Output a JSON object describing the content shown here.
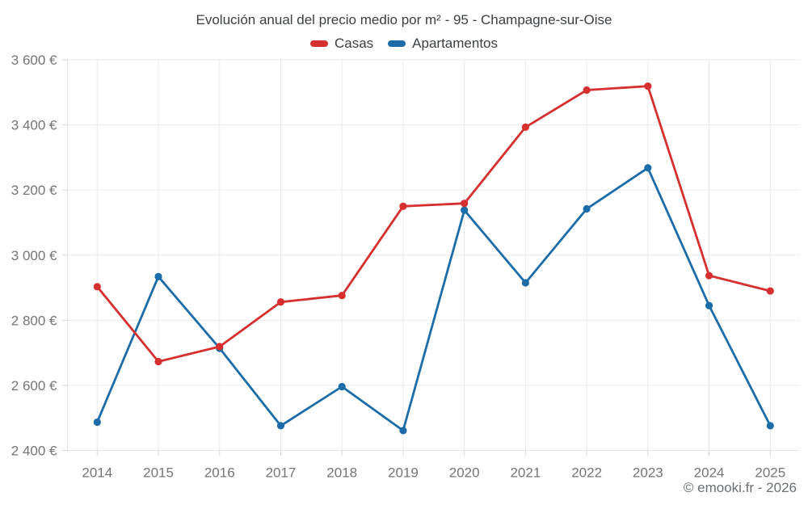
{
  "chart_data": {
    "type": "line",
    "title": "Evolución anual del precio medio por m² - 95 - Champagne-sur-Oise",
    "categories": [
      "2014",
      "2015",
      "2016",
      "2017",
      "2018",
      "2019",
      "2020",
      "2021",
      "2022",
      "2023",
      "2024",
      "2025"
    ],
    "series": [
      {
        "name": "Casas",
        "color": "#d5302f",
        "values": [
          2903,
          2673,
          2719,
          2856,
          2876,
          3150,
          3159,
          3393,
          3507,
          3519,
          2937,
          2890
        ]
      },
      {
        "name": "Apartamentos",
        "color": "#1b6ca8",
        "values": [
          2487,
          2934,
          2714,
          2476,
          2596,
          2461,
          3138,
          2915,
          3142,
          3268,
          2845,
          2476
        ]
      }
    ],
    "y_axis": {
      "min": 2400,
      "max": 3600,
      "step": 200,
      "tick_labels": [
        "2 400 €",
        "2 600 €",
        "2 800 €",
        "3 000 €",
        "3 200 €",
        "3 400 €",
        "3 600 €"
      ]
    },
    "grid": true,
    "legend_position": "top",
    "colors": {
      "grid_line": "#e9e9e9",
      "axis_line": "#e2e2e2",
      "tick_mark": "#d6d6d6",
      "axis_label": "#757575",
      "title_text": "#3c4043"
    },
    "footer": "© emooki.fr - 2026"
  }
}
